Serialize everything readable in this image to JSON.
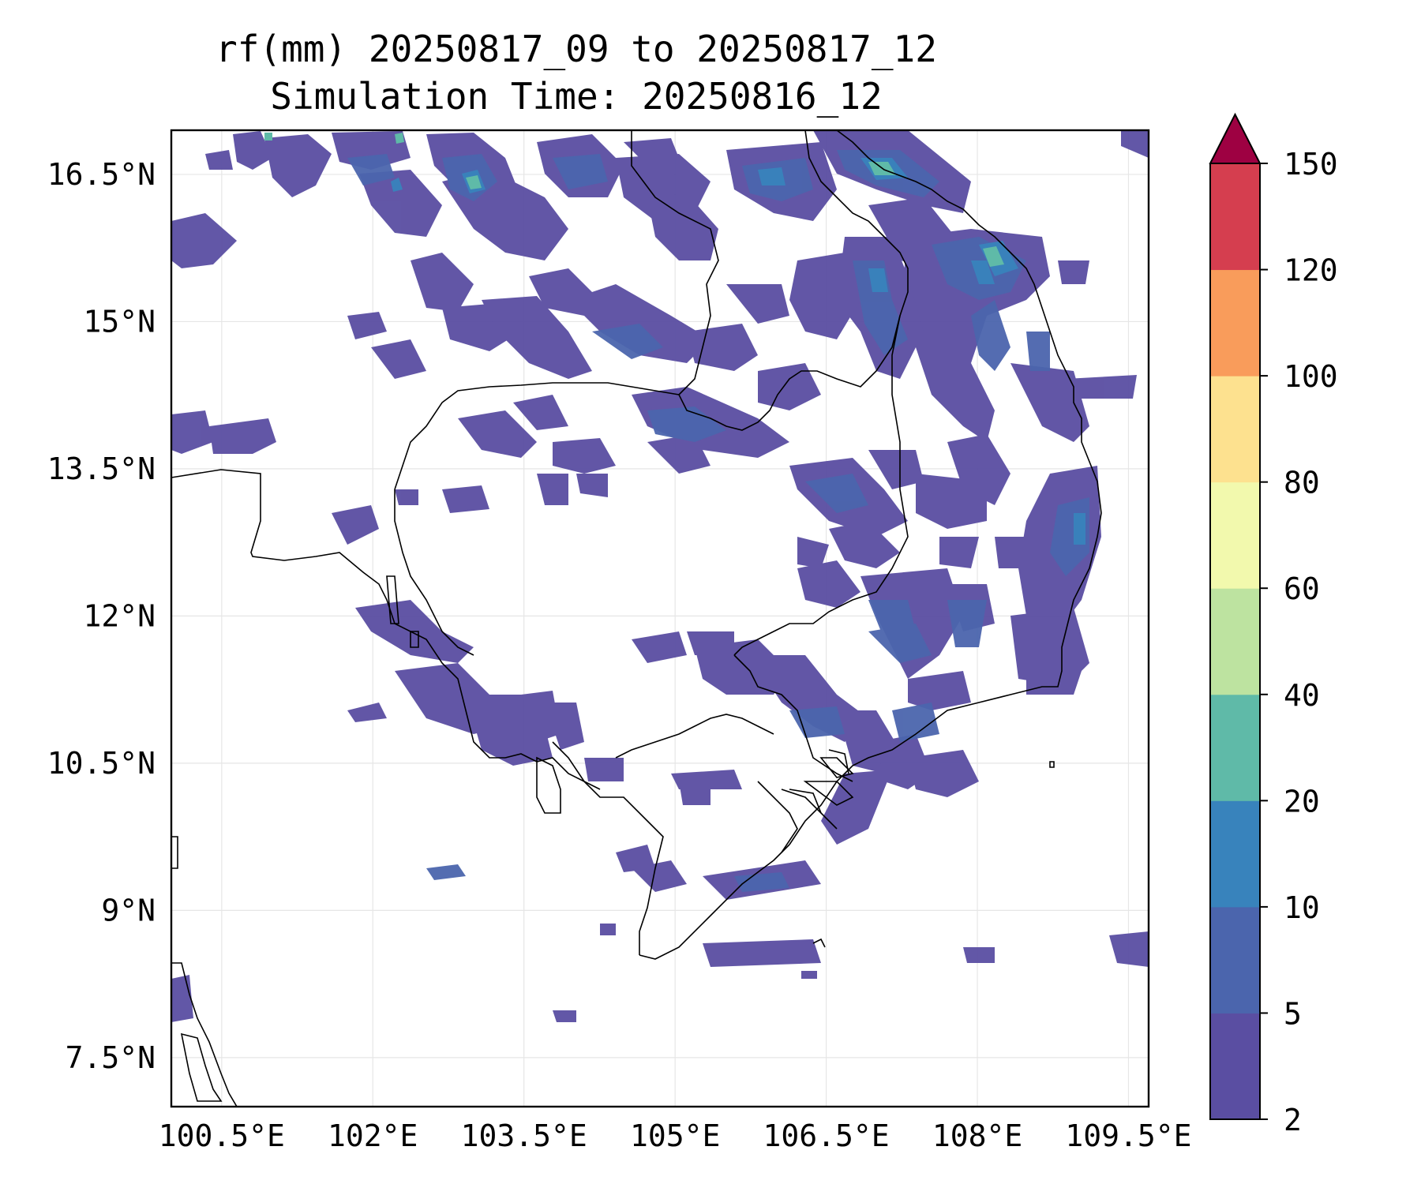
{
  "title": {
    "line1": "rf(mm) 20250817_09 to 20250817_12",
    "line2": "Simulation Time: 20250816_12"
  },
  "map": {
    "lon_range": [
      100.0,
      109.7
    ],
    "lat_range": [
      7.0,
      16.95
    ],
    "lon_ticks": [
      {
        "value": 100.5,
        "label": "100.5°E"
      },
      {
        "value": 102.0,
        "label": "102°E"
      },
      {
        "value": 103.5,
        "label": "103.5°E"
      },
      {
        "value": 105.0,
        "label": "105°E"
      },
      {
        "value": 106.5,
        "label": "106.5°E"
      },
      {
        "value": 108.0,
        "label": "108°E"
      },
      {
        "value": 109.5,
        "label": "109.5°E"
      }
    ],
    "lat_ticks": [
      {
        "value": 16.5,
        "label": "16.5°N"
      },
      {
        "value": 15.0,
        "label": "15°N"
      },
      {
        "value": 13.5,
        "label": "13.5°N"
      },
      {
        "value": 12.0,
        "label": "12°N"
      },
      {
        "value": 10.5,
        "label": "10.5°N"
      },
      {
        "value": 9.0,
        "label": "9°N"
      },
      {
        "value": 7.5,
        "label": "7.5°N"
      }
    ],
    "grid": true
  },
  "colorbar": {
    "levels": [
      "2",
      "5",
      "10",
      "20",
      "40",
      "60",
      "80",
      "100",
      "120",
      "150"
    ],
    "colors": [
      "#5a4ea2",
      "#4b65ad",
      "#3883bc",
      "#5fbaa8",
      "#bde3a0",
      "#f2f9ad",
      "#fde18f",
      "#f99c5b",
      "#d53e4f"
    ],
    "extend_color": "#9e0142",
    "extend": "max"
  },
  "chart_data": {
    "type": "heatmap",
    "title": "rf(mm) 20250817_09 to 20250817_12",
    "subtitle": "Simulation Time: 20250816_12",
    "xlabel": "",
    "ylabel": "",
    "xlim": [
      100.0,
      109.7
    ],
    "ylim": [
      7.0,
      16.95
    ],
    "colorbar_levels": [
      2,
      5,
      10,
      20,
      40,
      60,
      80,
      100,
      120,
      150
    ],
    "grid": true
  }
}
